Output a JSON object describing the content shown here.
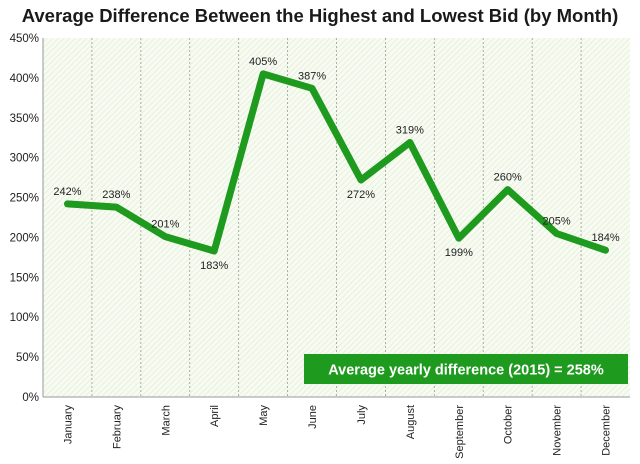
{
  "chart_data": {
    "type": "line",
    "title": "Average Difference Between the Highest and Lowest Bid (by Month)",
    "xlabel": "",
    "ylabel": "",
    "ylim": [
      0,
      450
    ],
    "yticks": [
      "0%",
      "50%",
      "100%",
      "150%",
      "200%",
      "250%",
      "300%",
      "350%",
      "400%",
      "450%"
    ],
    "categories": [
      "January",
      "February",
      "March",
      "April",
      "May",
      "June",
      "July",
      "August",
      "September",
      "October",
      "November",
      "December"
    ],
    "values": [
      242,
      238,
      201,
      183,
      405,
      387,
      272,
      319,
      199,
      260,
      205,
      184
    ],
    "value_labels": [
      "242%",
      "238%",
      "201%",
      "183%",
      "405%",
      "387%",
      "272%",
      "319%",
      "199%",
      "260%",
      "205%",
      "184%"
    ],
    "line_color": "#1e9a1e",
    "grid": true,
    "annotation": "Average yearly difference (2015) = 258%"
  }
}
